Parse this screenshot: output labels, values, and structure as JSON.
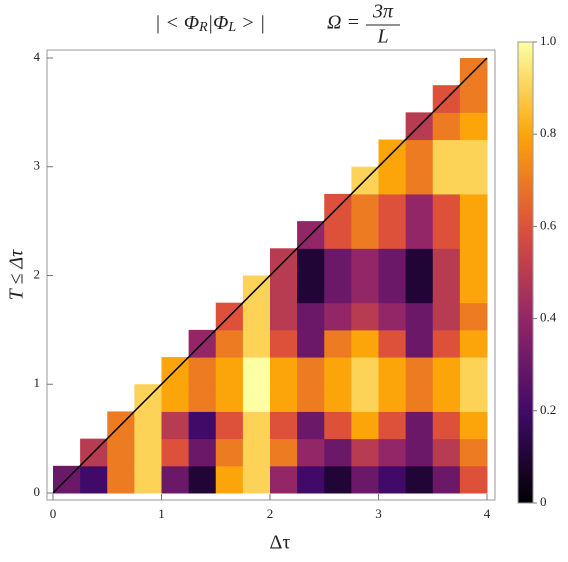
{
  "chart_data": {
    "type": "heatmap",
    "title_pieces": [
      "| < Φ",
      "R",
      "|Φ",
      "L",
      " > |"
    ],
    "annotation": {
      "lhs": "Ω =",
      "numerator": "3π",
      "denominator": "L"
    },
    "x_label": "Δτ",
    "y_label": "T ≤ Δτ",
    "xbins": [
      0,
      0.25,
      0.5,
      0.75,
      1,
      1.25,
      1.5,
      1.75,
      2,
      2.25,
      2.5,
      2.75,
      3,
      3.25,
      3.5,
      3.75,
      4
    ],
    "ybins": [
      0,
      0.25,
      0.5,
      0.75,
      1,
      1.25,
      1.5,
      1.75,
      2,
      2.25,
      2.5,
      2.75,
      3,
      3.25,
      3.5,
      3.75,
      4
    ],
    "z": [
      [
        0.3,
        0.2,
        0.7,
        0.9,
        0.3,
        0.1,
        0.8,
        0.9,
        0.4,
        0.2,
        0.1,
        0.3,
        0.2,
        0.1,
        0.3,
        0.6
      ],
      [
        null,
        0.5,
        0.7,
        0.9,
        0.6,
        0.3,
        0.7,
        0.9,
        0.7,
        0.4,
        0.3,
        0.5,
        0.4,
        0.3,
        0.5,
        0.7
      ],
      [
        null,
        null,
        0.7,
        0.9,
        0.5,
        0.2,
        0.6,
        0.9,
        0.6,
        0.3,
        0.6,
        0.8,
        0.6,
        0.3,
        0.6,
        0.8
      ],
      [
        null,
        null,
        null,
        0.9,
        0.8,
        0.7,
        0.8,
        1,
        0.8,
        0.7,
        0.8,
        0.9,
        0.8,
        0.7,
        0.8,
        0.9
      ],
      [
        null,
        null,
        null,
        null,
        0.8,
        0.7,
        0.8,
        1,
        0.8,
        0.7,
        0.8,
        0.9,
        0.8,
        0.7,
        0.8,
        0.9
      ],
      [
        null,
        null,
        null,
        null,
        null,
        0.4,
        0.7,
        0.9,
        0.6,
        0.3,
        0.7,
        0.8,
        0.6,
        0.3,
        0.6,
        0.8
      ],
      [
        null,
        null,
        null,
        null,
        null,
        null,
        0.6,
        0.9,
        0.5,
        0.3,
        0.4,
        0.5,
        0.4,
        0.3,
        0.5,
        0.7
      ],
      [
        null,
        null,
        null,
        null,
        null,
        null,
        null,
        0.9,
        0.5,
        0.1,
        0.3,
        0.4,
        0.3,
        0.1,
        0.5,
        0.8
      ],
      [
        null,
        null,
        null,
        null,
        null,
        null,
        null,
        null,
        0.5,
        0.1,
        0.3,
        0.4,
        0.3,
        0.1,
        0.5,
        0.8
      ],
      [
        null,
        null,
        null,
        null,
        null,
        null,
        null,
        null,
        null,
        0.4,
        0.6,
        0.7,
        0.6,
        0.4,
        0.6,
        0.8
      ],
      [
        null,
        null,
        null,
        null,
        null,
        null,
        null,
        null,
        null,
        null,
        0.6,
        0.7,
        0.6,
        0.4,
        0.6,
        0.8
      ],
      [
        null,
        null,
        null,
        null,
        null,
        null,
        null,
        null,
        null,
        null,
        null,
        0.9,
        0.8,
        0.7,
        0.9,
        0.9
      ],
      [
        null,
        null,
        null,
        null,
        null,
        null,
        null,
        null,
        null,
        null,
        null,
        null,
        0.8,
        0.7,
        0.9,
        0.9
      ],
      [
        null,
        null,
        null,
        null,
        null,
        null,
        null,
        null,
        null,
        null,
        null,
        null,
        null,
        0.5,
        0.7,
        0.8
      ],
      [
        null,
        null,
        null,
        null,
        null,
        null,
        null,
        null,
        null,
        null,
        null,
        null,
        null,
        null,
        0.6,
        0.7
      ],
      [
        null,
        null,
        null,
        null,
        null,
        null,
        null,
        null,
        null,
        null,
        null,
        null,
        null,
        null,
        null,
        0.7
      ]
    ],
    "xlim": [
      0,
      4
    ],
    "xticks": [
      0,
      1,
      2,
      3,
      4
    ],
    "ylim": [
      0,
      4
    ],
    "yticks": [
      0,
      1,
      2,
      3,
      4
    ],
    "zlim": [
      0,
      1
    ],
    "zticks": [
      0,
      0.2,
      0.4,
      0.6,
      0.8,
      {
        "value": 1,
        "label": "1.0"
      }
    ],
    "colormap": [
      "#000004",
      "#420a68",
      "#932667",
      "#dd513a",
      "#fca50a",
      "#fcffa4"
    ]
  }
}
